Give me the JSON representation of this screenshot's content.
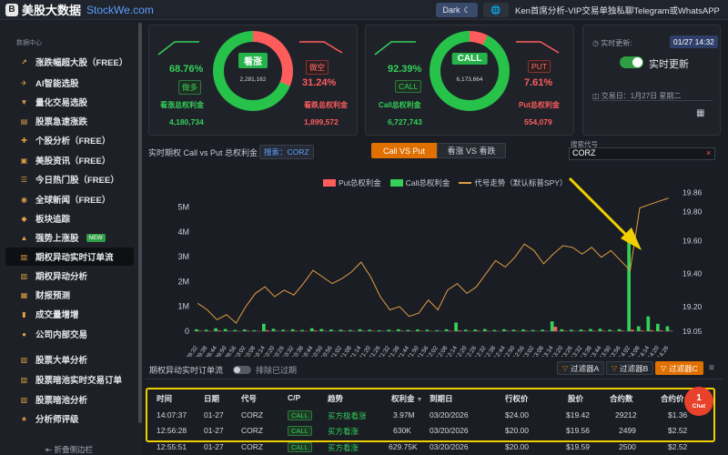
{
  "app": {
    "logo_glyph": "B",
    "title": "美股大数据",
    "domain": "StockWe.com",
    "theme_label": "Dark",
    "lang_icon": "globe-icon",
    "marquee": "Ken首席分析-VIP交易单独私聊Telegram或WhatsAPP"
  },
  "sidebar": {
    "caption": "数据中心",
    "items": [
      {
        "label": "涨跌幅超大股（FREE）",
        "icon": "trend-icon"
      },
      {
        "label": "AI智能选股",
        "icon": "rocket-icon"
      },
      {
        "label": "量化交易选股",
        "icon": "filter-icon"
      },
      {
        "label": "股票急速涨跌",
        "icon": "chart-icon"
      },
      {
        "label": "个股分析（FREE）",
        "icon": "plus-icon"
      },
      {
        "label": "美股资讯（FREE）",
        "icon": "news-icon"
      },
      {
        "label": "今日热门股（FREE）",
        "icon": "list-icon"
      },
      {
        "label": "全球新闻（FREE）",
        "icon": "globe-icon"
      },
      {
        "label": "板块追踪",
        "icon": "cube-icon"
      },
      {
        "label": "强势上涨股",
        "icon": "arrow-up-icon",
        "badge": "NEW"
      },
      {
        "label": "期权异动实时订单流",
        "icon": "bars-icon"
      },
      {
        "label": "期权异动分析",
        "icon": "bars-icon"
      },
      {
        "label": "财报预测",
        "icon": "calendar-icon"
      },
      {
        "label": "成交量增增",
        "icon": "volume-icon"
      },
      {
        "label": "公司内部交易",
        "icon": "users-icon"
      },
      {
        "label": "股票大单分析",
        "icon": "bars-icon"
      },
      {
        "label": "股票暗池实时交易订单",
        "icon": "bars-icon"
      },
      {
        "label": "股票暗池分析",
        "icon": "bars-icon"
      },
      {
        "label": "分析师评级",
        "icon": "star-icon"
      }
    ],
    "collapse_label": "折叠侧边栏"
  },
  "bull_card": {
    "left_pct": "68.76%",
    "left_tag": "做多",
    "left_label": "看涨总权利金",
    "left_value": "4,180,734",
    "right_pct": "31.24%",
    "right_tag": "做空",
    "right_label": "看跌总权利金",
    "right_value": "1,899,572",
    "center_label": "看涨",
    "center_total": "2,281,162",
    "green_fraction": 0.6876
  },
  "call_card": {
    "left_pct": "92.39%",
    "left_tag": "CALL",
    "left_label": "Call总权利金",
    "left_value": "6,727,743",
    "right_pct": "7.61%",
    "right_tag": "PUT",
    "right_label": "Put总权利金",
    "right_value": "554,079",
    "center_label": "CALL",
    "center_total": "6,173,664",
    "green_fraction": 0.9239
  },
  "update_card": {
    "label": "实时更新:",
    "time": "01/27 14:32",
    "toggle_label": "实时更新",
    "toggle_on": true,
    "trade_day": "交易日：1月27日 星期二"
  },
  "chart_header": {
    "title": "实时期权 Call vs Put 总权利金",
    "search_tag": "搜索：CORZ",
    "seg_active": "Call VS Put",
    "seg_inactive": "看涨 VS 看跌",
    "symbol_label": "搜索代号",
    "symbol_value": "CORZ",
    "clear_icon": "×"
  },
  "chart_data": {
    "type": "bar",
    "legend": [
      {
        "name": "Put总权利金",
        "color": "#ff5c5c"
      },
      {
        "name": "Call总权利金",
        "color": "#34d058"
      },
      {
        "name": "代号走势（默认标普SPY）",
        "color": "#e0a040"
      }
    ],
    "yleft_ticks": [
      "0",
      "1M",
      "2M",
      "3M",
      "4M",
      "5M"
    ],
    "yleft_lim": [
      0,
      5500000
    ],
    "yright_ticks": [
      "19.05",
      "19.20",
      "19.40",
      "19.60",
      "19.80",
      "19.86"
    ],
    "yright_lim": [
      19.05,
      19.88
    ],
    "x_ticks": [
      "09:32",
      "09:38",
      "09:44",
      "09:50",
      "09:56",
      "10:02",
      "10:08",
      "10:14",
      "10:20",
      "10:26",
      "10:32",
      "10:38",
      "10:44",
      "10:50",
      "10:56",
      "11:02",
      "11:08",
      "11:14",
      "11:20",
      "11:26",
      "11:32",
      "11:38",
      "11:44",
      "11:50",
      "11:56",
      "12:02",
      "12:08",
      "12:14",
      "12:20",
      "12:26",
      "12:32",
      "12:38",
      "12:44",
      "12:50",
      "12:56",
      "13:02",
      "13:08",
      "13:14",
      "13:20",
      "13:26",
      "13:32",
      "13:38",
      "13:44",
      "13:50",
      "13:56",
      "14:02",
      "14:08",
      "14:14",
      "14:20",
      "14:26"
    ],
    "call_values": [
      80000,
      60000,
      120000,
      90000,
      50000,
      70000,
      40000,
      300000,
      100000,
      60000,
      80000,
      50000,
      120000,
      90000,
      70000,
      60000,
      50000,
      80000,
      60000,
      40000,
      60000,
      80000,
      50000,
      70000,
      60000,
      40000,
      80000,
      350000,
      60000,
      70000,
      90000,
      50000,
      80000,
      60000,
      70000,
      50000,
      60000,
      400000,
      80000,
      60000,
      70000,
      90000,
      100000,
      60000,
      80000,
      3970000,
      200000,
      600000,
      300000,
      200000
    ],
    "put_values": [
      20000,
      10000,
      30000,
      15000,
      10000,
      20000,
      10000,
      40000,
      15000,
      10000,
      20000,
      10000,
      30000,
      15000,
      10000,
      20000,
      10000,
      20000,
      15000,
      10000,
      10000,
      20000,
      10000,
      15000,
      10000,
      10000,
      20000,
      30000,
      10000,
      20000,
      15000,
      10000,
      20000,
      10000,
      20000,
      10000,
      15000,
      180000,
      20000,
      10000,
      20000,
      15000,
      20000,
      10000,
      20000,
      60000,
      30000,
      40000,
      30000,
      20000
    ],
    "price": [
      19.22,
      19.18,
      19.12,
      19.15,
      19.1,
      19.2,
      19.28,
      19.32,
      19.26,
      19.3,
      19.27,
      19.34,
      19.42,
      19.38,
      19.34,
      19.37,
      19.41,
      19.47,
      19.38,
      19.26,
      19.18,
      19.2,
      19.14,
      19.16,
      19.24,
      19.18,
      19.3,
      19.34,
      19.28,
      19.32,
      19.4,
      19.48,
      19.44,
      19.5,
      19.58,
      19.54,
      19.46,
      19.52,
      19.57,
      19.56,
      19.52,
      19.56,
      19.5,
      19.54,
      19.48,
      19.42,
      19.8,
      19.82,
      19.84,
      19.86
    ],
    "annotation": "arrow pointing to 14:02 spike"
  },
  "orders": {
    "title": "期权异动实时订单流",
    "exclude_label": "排除已过期",
    "filters": [
      {
        "label": "过滤器A",
        "active": false
      },
      {
        "label": "过滤器B",
        "active": false
      },
      {
        "label": "过滤器C",
        "active": true
      }
    ],
    "columns": [
      "时间",
      "日期",
      "代号",
      "C/P",
      "趋势",
      "权利金",
      "到期日",
      "行权价",
      "股价",
      "合约数",
      "合约价"
    ],
    "rows": [
      {
        "time": "14:07:37",
        "date": "01-27",
        "symbol": "CORZ",
        "cp": "CALL",
        "trend": "买方极看涨",
        "premium": "3.97M",
        "expiry": "03/20/2026",
        "strike": "$24.00",
        "stock": "$19.42",
        "contracts": "29212",
        "price": "$1.36"
      },
      {
        "time": "12:56:28",
        "date": "01-27",
        "symbol": "CORZ",
        "cp": "CALL",
        "trend": "买方看涨",
        "premium": "630K",
        "expiry": "03/20/2026",
        "strike": "$20.00",
        "stock": "$19.56",
        "contracts": "2499",
        "price": "$2.52"
      },
      {
        "time": "12:55:51",
        "date": "01-27",
        "symbol": "CORZ",
        "cp": "CALL",
        "trend": "买方看涨",
        "premium": "629.75K",
        "expiry": "03/20/2026",
        "strike": "$20.00",
        "stock": "$19.59",
        "contracts": "2500",
        "price": "$2.52"
      }
    ]
  },
  "chat": {
    "label": "Chat",
    "badge": "1"
  }
}
